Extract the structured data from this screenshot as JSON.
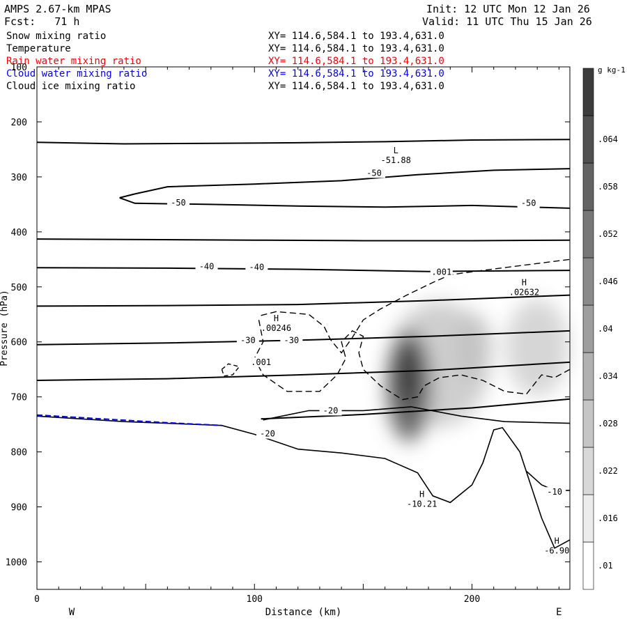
{
  "header": {
    "model": "AMPS 2.67-km MPAS",
    "forecast": "Fcst:   71 h",
    "init": "Init: 12 UTC Mon 12 Jan 26",
    "valid": "Valid: 11 UTC Thu 15 Jan 26"
  },
  "fields": [
    {
      "name": "Snow mixing ratio",
      "xy": "XY= 114.6,584.1 to 193.4,631.0",
      "color": "#000000"
    },
    {
      "name": "Temperature",
      "xy": "XY= 114.6,584.1 to 193.4,631.0",
      "color": "#000000"
    },
    {
      "name": "Rain water mixing ratio",
      "xy": "XY= 114.6,584.1 to 193.4,631.0",
      "color": "#ff0000"
    },
    {
      "name": "Cloud water mixing ratio",
      "xy": "XY= 114.6,584.1 to 193.4,631.0",
      "color": "#0000ff"
    },
    {
      "name": "Cloud ice mixing ratio",
      "xy": "XY= 114.6,584.1 to 193.4,631.0",
      "color": "#000000"
    }
  ],
  "chart_data": {
    "type": "cross-section",
    "xlabel": "Distance (km)",
    "ylabel": "Pressure (hPa)",
    "xlim": [
      0,
      245
    ],
    "ylim": [
      1050,
      100
    ],
    "xticks": [
      0,
      100,
      200
    ],
    "yticks": [
      100,
      200,
      300,
      400,
      500,
      600,
      700,
      800,
      900,
      1000
    ],
    "side_labels": {
      "left": "W",
      "right": "E"
    },
    "colorbar": {
      "unit": "g kg-1",
      "levels": [
        0.01,
        0.016,
        0.022,
        0.028,
        0.034,
        0.04,
        0.046,
        0.052,
        0.058,
        0.064
      ],
      "labels": [
        ".01",
        ".016",
        ".022",
        ".028",
        ".034",
        ".04",
        ".046",
        ".052",
        ".058",
        ".064"
      ]
    },
    "temperature_contours": [
      {
        "level": -50,
        "points": [
          [
            0,
            237
          ],
          [
            40,
            240
          ],
          [
            80,
            239
          ],
          [
            120,
            238
          ],
          [
            160,
            236
          ],
          [
            200,
            233
          ],
          [
            245,
            232
          ]
        ]
      },
      {
        "level": -50,
        "points": [
          [
            45,
            331
          ],
          [
            60,
            318
          ],
          [
            100,
            313
          ],
          [
            140,
            307
          ],
          [
            175,
            296
          ],
          [
            210,
            288
          ],
          [
            245,
            285
          ]
        ]
      },
      {
        "level": -50,
        "points": [
          [
            38,
            338
          ],
          [
            45,
            348
          ],
          [
            80,
            350
          ],
          [
            120,
            353
          ],
          [
            160,
            355
          ],
          [
            200,
            352
          ],
          [
            245,
            357
          ]
        ]
      },
      {
        "level": -40,
        "points": [
          [
            0,
            413
          ],
          [
            50,
            414
          ],
          [
            100,
            415
          ],
          [
            150,
            416
          ],
          [
            200,
            416
          ],
          [
            245,
            415
          ]
        ]
      },
      {
        "level": -40,
        "points": [
          [
            0,
            465
          ],
          [
            60,
            466
          ],
          [
            120,
            468
          ],
          [
            180,
            472
          ],
          [
            245,
            470
          ]
        ]
      },
      {
        "level": -30,
        "points": [
          [
            0,
            535
          ],
          [
            60,
            534
          ],
          [
            120,
            532
          ],
          [
            180,
            525
          ],
          [
            245,
            515
          ]
        ]
      },
      {
        "level": -30,
        "points": [
          [
            0,
            605
          ],
          [
            60,
            602
          ],
          [
            120,
            597
          ],
          [
            180,
            590
          ],
          [
            245,
            580
          ]
        ]
      },
      {
        "level": -30,
        "points": [
          [
            0,
            670
          ],
          [
            60,
            667
          ],
          [
            120,
            660
          ],
          [
            180,
            652
          ],
          [
            245,
            637
          ]
        ]
      },
      {
        "level": -20,
        "points": [
          [
            103,
            740
          ],
          [
            150,
            732
          ],
          [
            200,
            720
          ],
          [
            245,
            704
          ]
        ]
      }
    ],
    "terrain": [
      [
        0,
        735
      ],
      [
        40,
        745
      ],
      [
        85,
        752
      ],
      [
        100,
        768
      ],
      [
        120,
        795
      ],
      [
        140,
        802
      ],
      [
        160,
        812
      ],
      [
        175,
        838
      ],
      [
        182,
        880
      ],
      [
        190,
        892
      ],
      [
        200,
        860
      ],
      [
        205,
        820
      ],
      [
        210,
        760
      ],
      [
        214,
        756
      ],
      [
        222,
        800
      ],
      [
        232,
        920
      ],
      [
        238,
        975
      ],
      [
        245,
        960
      ]
    ],
    "cloud_water_line": [
      [
        0,
        733
      ],
      [
        30,
        740
      ],
      [
        60,
        747
      ],
      [
        85,
        752
      ]
    ],
    "ice_contour_level": 0.001,
    "annotations": [
      {
        "kind": "L",
        "value": "-51.88",
        "x": 165,
        "y": 275
      },
      {
        "kind": "H",
        "value": ".02632",
        "x": 224,
        "y": 515
      },
      {
        "kind": "H",
        "value": ".00246",
        "x": 110,
        "y": 580
      },
      {
        "kind": "H",
        "value": "-10.21",
        "x": 177,
        "y": 900
      },
      {
        "kind": "H",
        "value": "-6.90",
        "x": 239,
        "y": 985
      }
    ],
    "contour_labels": [
      "-50",
      "-50",
      "-50",
      "-40",
      "-40",
      "-30",
      "-30",
      "-20",
      "-20",
      "-10",
      ".001",
      ".001"
    ]
  }
}
